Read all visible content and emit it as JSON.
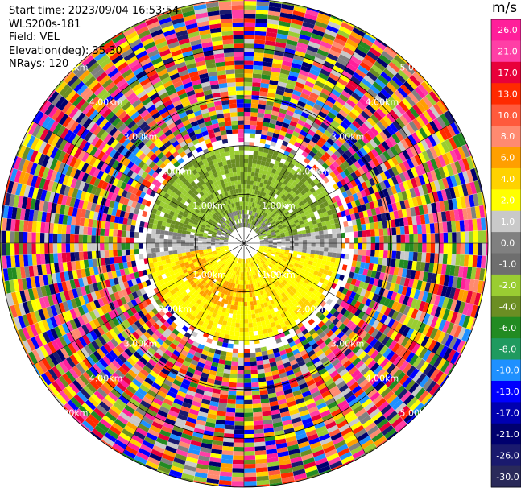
{
  "header": {
    "start_time": "Start time: 2023/09/04 16:53:54",
    "instrument": "WLS200s-181",
    "field": "Field: VEL",
    "elevation": "Elevation(deg): 35.30",
    "nrays": "NRays: 120"
  },
  "chart_data": {
    "type": "polar-heatmap",
    "field": "VEL",
    "units": "m/s",
    "nrays": 120,
    "elevation_deg": 35.3,
    "range_labels": [
      "1.00km",
      "2.00km",
      "3.00km",
      "4.00km",
      "5.00km"
    ],
    "ring_km": [
      1,
      2,
      3,
      4,
      5
    ],
    "max_range_km": 5.0,
    "colorbar": {
      "title": "m/s",
      "tick_labels": [
        "26.0",
        "21.0",
        "17.0",
        "13.0",
        "10.0",
        "8.0",
        "6.0",
        "4.0",
        "2.0",
        "1.0",
        "0.0",
        "-1.0",
        "-2.0",
        "-4.0",
        "-6.0",
        "-8.0",
        "-10.0",
        "-13.0",
        "-17.0",
        "-21.0",
        "-26.0",
        "-30.0"
      ],
      "colors": [
        "#ff1f9a",
        "#ff3fa6",
        "#e8003a",
        "#ff2a00",
        "#ff5a3c",
        "#ff8a70",
        "#ff9f00",
        "#ffd200",
        "#ffff00",
        "#c9c9c9",
        "#808080",
        "#6e6e6e",
        "#9acd32",
        "#6b8e23",
        "#228b22",
        "#1f9a5f",
        "#1e90ff",
        "#0000ff",
        "#0000b0",
        "#00006e",
        "#1a1a6e",
        "#2a2a5a"
      ]
    },
    "inner_region": {
      "description_values": {
        "north": "approaching (-2 to -6 m/s)",
        "south": "receding (1 to 4 m/s)"
      }
    },
    "grid": true,
    "spokes": 12
  }
}
